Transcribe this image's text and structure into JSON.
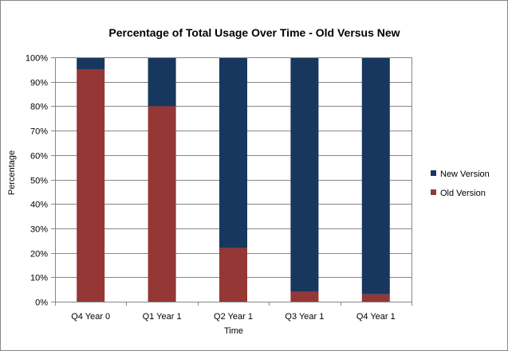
{
  "chart_data": {
    "type": "bar",
    "stacked": true,
    "title": "Percentage of Total Usage Over Time - Old Versus New",
    "xlabel": "Time",
    "ylabel": "Percentage",
    "ylim": [
      0,
      100
    ],
    "y_ticks": [
      "0%",
      "10%",
      "20%",
      "30%",
      "40%",
      "50%",
      "60%",
      "70%",
      "80%",
      "90%",
      "100%"
    ],
    "categories": [
      "Q4 Year 0",
      "Q1 Year 1",
      "Q2 Year 1",
      "Q3 Year 1",
      "Q4 Year 1"
    ],
    "series": [
      {
        "name": "Old Version",
        "color": "#953735",
        "values": [
          95,
          80,
          22,
          4,
          3
        ]
      },
      {
        "name": "New Version",
        "color": "#17375E",
        "values": [
          5,
          20,
          78,
          96,
          97
        ]
      }
    ],
    "legend_order": [
      "New Version",
      "Old Version"
    ],
    "legend_position": "right",
    "grid": true
  }
}
